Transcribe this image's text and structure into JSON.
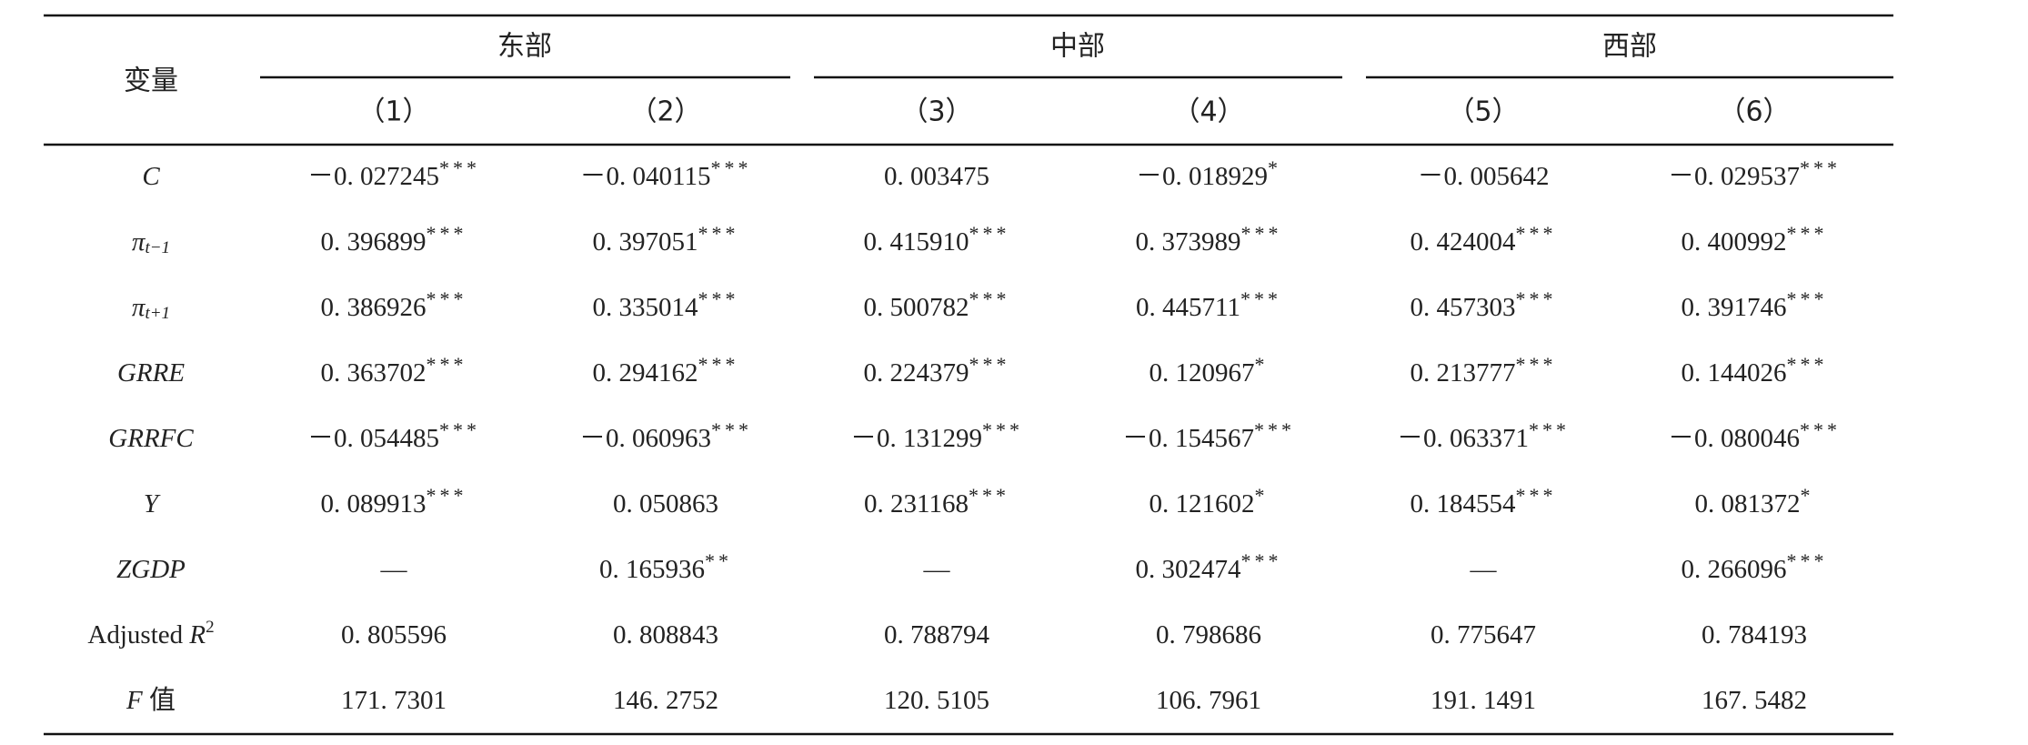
{
  "table": {
    "corner": "变量",
    "groups": [
      "东部",
      "中部",
      "西部"
    ],
    "columns": [
      "（1）",
      "（2）",
      "（3）",
      "（4）",
      "（5）",
      "（6）"
    ],
    "rows": [
      {
        "label": [
          {
            "text": "C",
            "style": "italic"
          }
        ],
        "cells": [
          {
            "v": "－0. 027245",
            "s": "***"
          },
          {
            "v": "－0. 040115",
            "s": "***"
          },
          {
            "v": "0. 003475"
          },
          {
            "v": "－0. 018929",
            "s": "*"
          },
          {
            "v": "－0. 005642"
          },
          {
            "v": "－0. 029537",
            "s": "***"
          }
        ]
      },
      {
        "label": [
          {
            "text": "π",
            "style": "italic"
          },
          {
            "text": "t−1",
            "style": "sub"
          }
        ],
        "cells": [
          {
            "v": "0. 396899",
            "s": "***"
          },
          {
            "v": "0. 397051",
            "s": "***"
          },
          {
            "v": "0. 415910",
            "s": "***"
          },
          {
            "v": "0. 373989",
            "s": "***"
          },
          {
            "v": "0. 424004",
            "s": "***"
          },
          {
            "v": "0. 400992",
            "s": "***"
          }
        ]
      },
      {
        "label": [
          {
            "text": "π",
            "style": "italic"
          },
          {
            "text": "t+1",
            "style": "sub"
          }
        ],
        "cells": [
          {
            "v": "0. 386926",
            "s": "***"
          },
          {
            "v": "0. 335014",
            "s": "***"
          },
          {
            "v": "0. 500782",
            "s": "***"
          },
          {
            "v": "0. 445711",
            "s": "***"
          },
          {
            "v": "0. 457303",
            "s": "***"
          },
          {
            "v": "0. 391746",
            "s": "***"
          }
        ]
      },
      {
        "label": [
          {
            "text": "GRRE",
            "style": "italic"
          }
        ],
        "cells": [
          {
            "v": "0. 363702",
            "s": "***"
          },
          {
            "v": "0. 294162",
            "s": "***"
          },
          {
            "v": "0. 224379",
            "s": "***"
          },
          {
            "v": "0. 120967",
            "s": "*"
          },
          {
            "v": "0. 213777",
            "s": "***"
          },
          {
            "v": "0. 144026",
            "s": "***"
          }
        ]
      },
      {
        "label": [
          {
            "text": "GRRFC",
            "style": "italic"
          }
        ],
        "cells": [
          {
            "v": "－0. 054485",
            "s": "***"
          },
          {
            "v": "－0. 060963",
            "s": "***"
          },
          {
            "v": "－0. 131299",
            "s": "***"
          },
          {
            "v": "－0. 154567",
            "s": "***"
          },
          {
            "v": "－0. 063371",
            "s": "***"
          },
          {
            "v": "－0. 080046",
            "s": "***"
          }
        ]
      },
      {
        "label": [
          {
            "text": "Y",
            "style": "italic"
          }
        ],
        "cells": [
          {
            "v": "0. 089913",
            "s": "***"
          },
          {
            "v": "0. 050863"
          },
          {
            "v": "0. 231168",
            "s": "***"
          },
          {
            "v": "0. 121602",
            "s": "*"
          },
          {
            "v": "0. 184554",
            "s": "***"
          },
          {
            "v": "0. 081372",
            "s": "*"
          }
        ]
      },
      {
        "label": [
          {
            "text": "ZGDP",
            "style": "italic"
          }
        ],
        "cells": [
          {
            "v": "—"
          },
          {
            "v": "0. 165936",
            "s": "**"
          },
          {
            "v": "—"
          },
          {
            "v": "0. 302474",
            "s": "***"
          },
          {
            "v": "—"
          },
          {
            "v": "0. 266096",
            "s": "***"
          }
        ]
      },
      {
        "label": [
          {
            "text": "Adjusted ",
            "style": "normal"
          },
          {
            "text": "R",
            "style": "italic"
          },
          {
            "text": "2",
            "style": "sup"
          }
        ],
        "cells": [
          {
            "v": "0. 805596"
          },
          {
            "v": "0. 808843"
          },
          {
            "v": "0. 788794"
          },
          {
            "v": "0. 798686"
          },
          {
            "v": "0. 775647"
          },
          {
            "v": "0. 784193"
          }
        ]
      },
      {
        "label": [
          {
            "text": "F",
            "style": "italic"
          },
          {
            "text": " 值",
            "style": "normal"
          }
        ],
        "cells": [
          {
            "v": "171. 7301"
          },
          {
            "v": "146. 2752"
          },
          {
            "v": "120. 5105"
          },
          {
            "v": "106. 7961"
          },
          {
            "v": "191. 1491"
          },
          {
            "v": "167. 5482"
          }
        ]
      }
    ]
  }
}
